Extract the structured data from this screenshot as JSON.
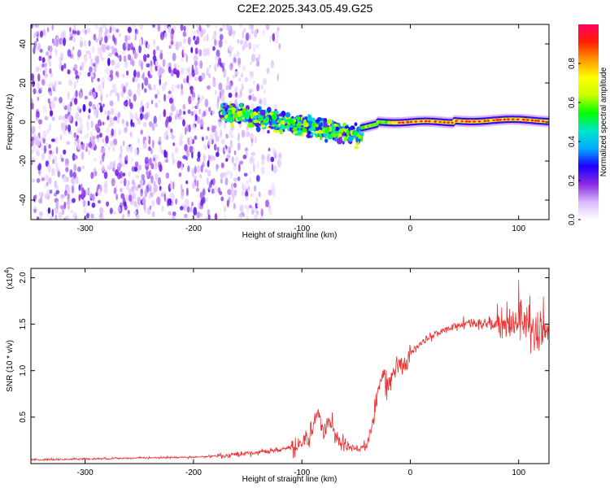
{
  "title": "C2E2.2025.343.05.49.G25",
  "chart_data": [
    {
      "type": "heatmap",
      "name": "spectrogram",
      "xlabel": "Height of straight line (km)",
      "ylabel": "Frequency (Hz)",
      "xlim": [
        -350,
        128
      ],
      "ylim": [
        -50,
        50
      ],
      "x_ticks": [
        -300,
        -200,
        -100,
        0,
        100
      ],
      "y_ticks": [
        -40,
        -20,
        0,
        20,
        40
      ],
      "colorbar": {
        "label": "Normalized spectral amplitude",
        "range": [
          0,
          1
        ],
        "ticks": [
          "0.0",
          "0.2",
          "0.4",
          "0.6",
          "0.8"
        ],
        "tick_values": [
          0.0,
          0.2,
          0.4,
          0.6,
          0.8
        ],
        "colors": [
          "#ffffff",
          "#d9b8ff",
          "#8a2be2",
          "#1c00ff",
          "#00aaff",
          "#00e5cc",
          "#00ff00",
          "#c8ff00",
          "#ffff00",
          "#ff9900",
          "#ff2000",
          "#ff0066"
        ]
      },
      "regions": [
        {
          "x_range": [
            -350,
            -130
          ],
          "f_range": [
            -50,
            50
          ],
          "level": 0.15,
          "description": "broadband noise"
        },
        {
          "x_range": [
            -175,
            -45
          ],
          "center_hz": [
            6,
            -5
          ],
          "level": 0.4,
          "description": "transition region"
        },
        {
          "x_range": [
            -45,
            128
          ],
          "center_hz": 0,
          "level": 0.95,
          "description": "carrier line near 0 Hz"
        }
      ]
    },
    {
      "type": "line",
      "name": "snr",
      "xlabel": "Height of straight line (km)",
      "ylabel": "SNR (10 * v/v)",
      "y_multiplier": "(x10",
      "y_multiplier_exp": "4",
      "y_multiplier_close": ")",
      "xlim": [
        -350,
        128
      ],
      "ylim": [
        0,
        2.1
      ],
      "x_ticks": [
        -300,
        -200,
        -100,
        0,
        100
      ],
      "y_ticks": [
        0.5,
        1.0,
        1.5,
        2.0
      ],
      "y_tick_labels": [
        "0.5",
        "1.0",
        "1.5",
        "2.0"
      ],
      "color": "#ee3030",
      "series": [
        {
          "name": "SNR",
          "x": [
            -350,
            -300,
            -250,
            -200,
            -180,
            -160,
            -140,
            -120,
            -105,
            -95,
            -90,
            -85,
            -80,
            -75,
            -70,
            -60,
            -50,
            -40,
            -35,
            -30,
            -25,
            -20,
            -15,
            -10,
            -5,
            0,
            10,
            20,
            30,
            40,
            50,
            60,
            70,
            80,
            90,
            100,
            110,
            120,
            128
          ],
          "y": [
            0.04,
            0.05,
            0.06,
            0.07,
            0.08,
            0.1,
            0.12,
            0.15,
            0.2,
            0.3,
            0.4,
            0.55,
            0.35,
            0.45,
            0.3,
            0.2,
            0.15,
            0.2,
            0.4,
            0.8,
            0.95,
            0.85,
            1.0,
            1.1,
            1.05,
            1.2,
            1.3,
            1.38,
            1.43,
            1.47,
            1.5,
            1.5,
            1.52,
            1.5,
            1.5,
            1.55,
            1.45,
            1.4,
            1.45
          ]
        }
      ]
    }
  ]
}
